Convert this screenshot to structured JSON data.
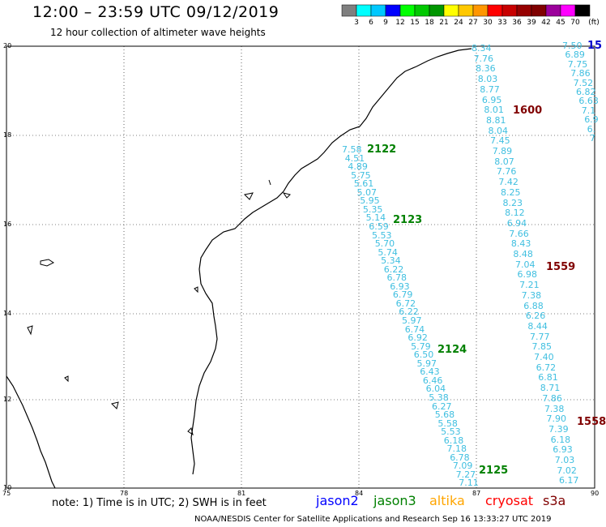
{
  "header": {
    "title": "12:00 – 23:59 UTC 09/12/2019",
    "subtitle": "12 hour collection of altimeter wave heights"
  },
  "colorbar": {
    "colors": [
      "#7f7f7f",
      "#00ffff",
      "#00c8ff",
      "#0000ff",
      "#00ff00",
      "#00c800",
      "#009600",
      "#ffff00",
      "#ffc800",
      "#ff9600",
      "#ff0000",
      "#c80000",
      "#960000",
      "#7f0000",
      "#9b009b",
      "#ff00ff",
      "#000000"
    ],
    "labels": [
      "3",
      "6",
      "9",
      "12",
      "15",
      "18",
      "21",
      "24",
      "27",
      "30",
      "33",
      "36",
      "39",
      "42",
      "45",
      "70"
    ],
    "unit": "(ft)"
  },
  "axes": {
    "lon_labels": [
      "75",
      "78",
      "81",
      "84",
      "87",
      "90"
    ],
    "lat_labels": [
      "20",
      "18",
      "16",
      "14",
      "12",
      "10"
    ]
  },
  "tracks": [
    {
      "id": "2122",
      "color": "#008000"
    },
    {
      "id": "2123",
      "color": "#008000"
    },
    {
      "id": "2124",
      "color": "#008000"
    },
    {
      "id": "2125",
      "color": "#008000"
    },
    {
      "id": "1600",
      "color": "#800000"
    },
    {
      "id": "1559",
      "color": "#800000"
    },
    {
      "id": "1558",
      "color": "#800000"
    }
  ],
  "values": {
    "track_a": [
      "8.34",
      "7.76",
      "8.36",
      "8.03",
      "8.77",
      "6.95",
      "8.01",
      "8.81",
      "8.04",
      "7.45",
      "7.89",
      "8.07",
      "7.76",
      "7.42",
      "8.25",
      "8.23",
      "8.12",
      "6.94",
      "7.66",
      "8.43",
      "8.48",
      "7.04",
      "6.98",
      "7.21",
      "7.38",
      "6.88",
      "6.26",
      "8.44",
      "7.77",
      "7.85",
      "7.40",
      "6.72",
      "6.81",
      "8.71",
      "7.86",
      "7.38",
      "7.90",
      "7.39",
      "6.18",
      "6.93",
      "7.03",
      "7.02",
      "6.17"
    ],
    "track_b": [
      "7.58",
      "4.51",
      "4.89",
      "5.75",
      "5.61",
      "5.07",
      "5.95",
      "5.35",
      "5.14",
      "6.59",
      "5.53",
      "5.70",
      "5.74",
      "5.34",
      "6.22",
      "6.78",
      "6.93",
      "6.79",
      "6.72",
      "6.22",
      "5.97",
      "6.74",
      "6.92",
      "5.79",
      "6.50",
      "5.97",
      "6.43",
      "6.46",
      "6.04",
      "5.38",
      "6.27",
      "5.68",
      "5.58",
      "5.53",
      "6.18",
      "7.18",
      "6.78",
      "7.09",
      "7.27",
      "7.11"
    ],
    "track_c": [
      "7.50",
      "6.89",
      "7.75",
      "7.86",
      "7.52",
      "6.82",
      "6.63",
      "7.1",
      "6.9",
      "6.",
      "7"
    ],
    "track_c_label": "15"
  },
  "footer": {
    "note": "note: 1) Time is in UTC; 2) SWH is in feet",
    "legend": [
      {
        "label": "jason2",
        "color": "#0000ff"
      },
      {
        "label": "jason3",
        "color": "#008000"
      },
      {
        "label": "altika",
        "color": "#ffa500"
      },
      {
        "label": "cryosat",
        "color": "#ff0000"
      },
      {
        "label": "s3a",
        "color": "#800000"
      }
    ],
    "credit": "NOAA/NESDIS Center for Satellite Applications and Research   Sep 16 13:33:27 UTC 2019"
  }
}
